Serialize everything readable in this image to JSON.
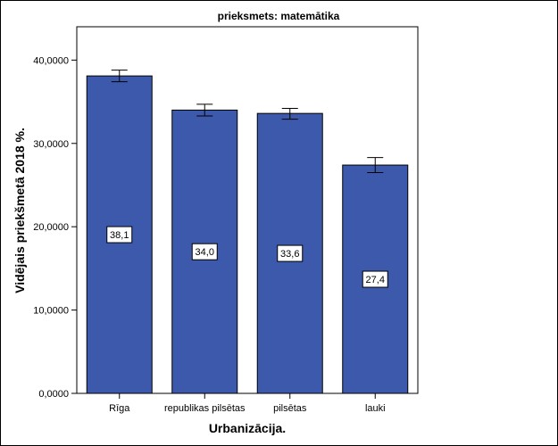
{
  "chart_data": {
    "type": "bar",
    "title": "prieksmets: matemātika",
    "xlabel": "Urbanizācija.",
    "ylabel": "Vidējais priekšmetā 2018 %.",
    "categories": [
      "Rīga",
      "republikas pilsētas",
      "pilsētas",
      "lauki"
    ],
    "values": [
      38.1,
      34.0,
      33.6,
      27.4
    ],
    "data_labels": [
      "38,1",
      "34,0",
      "33,6",
      "27,4"
    ],
    "error_bars": [
      {
        "low": 37.4,
        "high": 38.8
      },
      {
        "low": 33.3,
        "high": 34.7
      },
      {
        "low": 32.9,
        "high": 34.2
      },
      {
        "low": 26.5,
        "high": 28.3
      }
    ],
    "ylim": [
      0,
      44
    ],
    "yticks": [
      0,
      10,
      20,
      30,
      40
    ],
    "ytick_labels": [
      "0,0000",
      "10,0000",
      "20,0000",
      "30,0000",
      "40,0000"
    ],
    "grid": false,
    "bar_color": "#3d59ab",
    "bar_edge_color": "#000000"
  }
}
